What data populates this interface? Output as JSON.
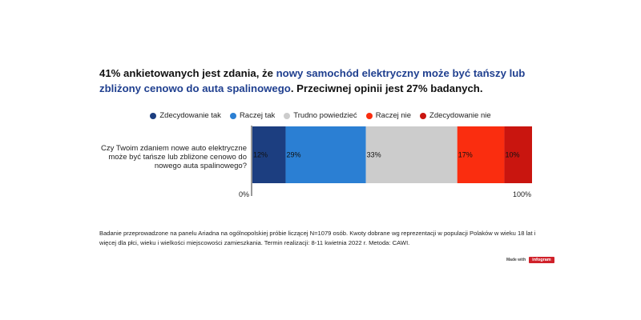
{
  "headline": {
    "part1": "41% ankietowanych jest zdania, że ",
    "highlight": "nowy samochód elektryczny może być tańszy lub zbliżony cenowo do auta spalinowego",
    "part2": ". Przeciwnej opinii jest 27% badanych."
  },
  "chart_data": {
    "type": "bar",
    "orientation": "horizontal-stacked-100",
    "categories": [
      "Czy Twoim zdaniem nowe auto elektryczne może być tańsze lub zbliżone cenowo do nowego auta spalinowego?"
    ],
    "series": [
      {
        "name": "Zdecydowanie tak",
        "values": [
          12
        ],
        "label": "12%",
        "color": "#1c3e80"
      },
      {
        "name": "Raczej tak",
        "values": [
          29
        ],
        "label": "29%",
        "color": "#2b7fd3"
      },
      {
        "name": "Trudno powiedzieć",
        "values": [
          33
        ],
        "label": "33%",
        "color": "#cccccc"
      },
      {
        "name": "Raczej nie",
        "values": [
          17
        ],
        "label": "17%",
        "color": "#fa2d0f"
      },
      {
        "name": "Zdecydowanie nie",
        "values": [
          10
        ],
        "label": "10%",
        "color": "#c9150f"
      }
    ],
    "xlim": [
      0,
      100
    ],
    "tick_labels": [
      "0%",
      "100%"
    ],
    "legend_position": "top",
    "grid": false
  },
  "footnote": "Badanie przeprowadzone na panelu Ariadna na ogólnopolskiej próbie liczącej N=1079 osób. Kwoty dobrane wg reprezentacji w populacji Polaków w wieku 18 lat i więcej dla płci, wieku i wielkości miejscowości zamieszkania. Termin realizacji:  8-11 kwietnia 2022 r. Metoda: CAWI.",
  "branding": {
    "made_with": "Made with",
    "brand": "infogram"
  }
}
